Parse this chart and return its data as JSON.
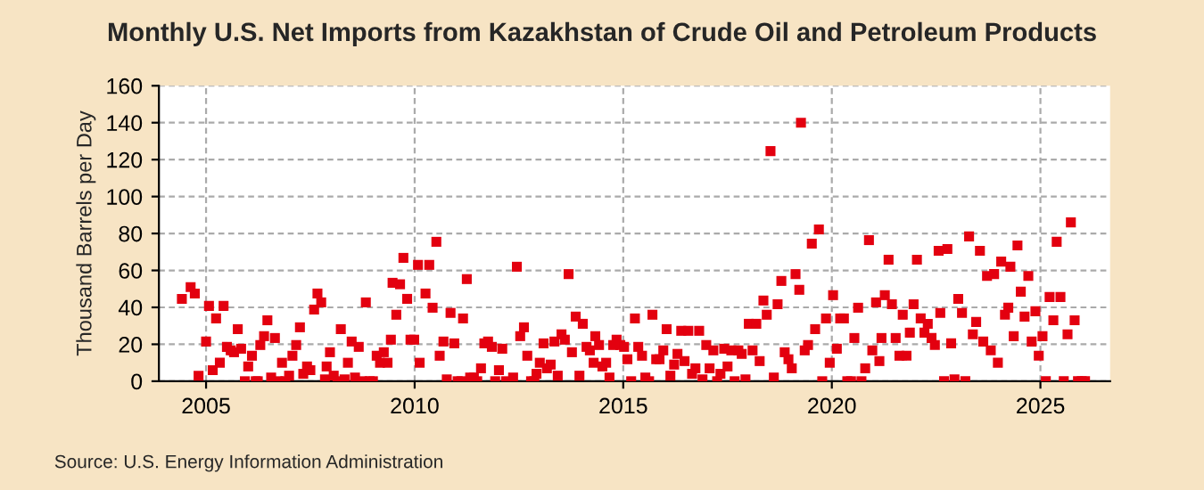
{
  "chart_data": {
    "type": "scatter",
    "title": "Monthly U.S. Net Imports from Kazakhstan of Crude Oil and Petroleum Products",
    "ylabel": "Thousand Barrels per Day",
    "annotations": [
      "Source: U.S. Energy Information Administration"
    ],
    "xlim": [
      2003.87,
      2026.67
    ],
    "xticks": [
      2005,
      2010,
      2015,
      2020,
      2025
    ],
    "ylim": [
      0,
      160
    ],
    "yticks": [
      0,
      20,
      40,
      60,
      80,
      100,
      120,
      140,
      160
    ],
    "grid": true,
    "marker": "square",
    "legend": false,
    "series": [
      {
        "color": "#e3000f",
        "x": [
          2004.42,
          2004.63,
          2004.73,
          2004.82,
          2005.0,
          2005.07,
          2005.16,
          2005.24,
          2005.33,
          2005.42,
          2005.5,
          2005.59,
          2005.67,
          2005.76,
          2005.84,
          2005.93,
          2006.01,
          2006.1,
          2006.19,
          2006.24,
          2006.3,
          2006.39,
          2006.47,
          2006.56,
          2006.65,
          2006.73,
          2006.82,
          2006.9,
          2006.99,
          2007.07,
          2007.16,
          2007.25,
          2007.33,
          2007.42,
          2007.5,
          2007.59,
          2007.67,
          2007.76,
          2007.85,
          2007.89,
          2007.97,
          2008.06,
          2008.15,
          2008.23,
          2008.32,
          2008.4,
          2008.49,
          2008.57,
          2008.66,
          2008.75,
          2008.83,
          2008.92,
          2009.0,
          2009.09,
          2009.17,
          2009.26,
          2009.35,
          2009.43,
          2009.47,
          2009.56,
          2009.65,
          2009.73,
          2009.82,
          2009.9,
          2009.99,
          2010.08,
          2010.12,
          2010.26,
          2010.35,
          2010.43,
          2010.52,
          2010.6,
          2010.69,
          2010.77,
          2010.86,
          2010.95,
          2011.03,
          2011.12,
          2011.16,
          2011.25,
          2011.33,
          2011.42,
          2011.5,
          2011.59,
          2011.67,
          2011.76,
          2011.85,
          2011.93,
          2012.02,
          2012.1,
          2012.19,
          2012.36,
          2012.45,
          2012.53,
          2012.62,
          2012.7,
          2012.79,
          2012.87,
          2012.92,
          2013.0,
          2013.09,
          2013.17,
          2013.26,
          2013.35,
          2013.43,
          2013.52,
          2013.6,
          2013.69,
          2013.77,
          2013.86,
          2013.95,
          2014.03,
          2014.12,
          2014.2,
          2014.29,
          2014.33,
          2014.42,
          2014.5,
          2014.59,
          2014.67,
          2014.76,
          2014.84,
          2014.93,
          2015.02,
          2015.1,
          2015.19,
          2015.28,
          2015.36,
          2015.45,
          2015.53,
          2015.62,
          2015.7,
          2015.79,
          2015.87,
          2015.96,
          2016.04,
          2016.13,
          2016.22,
          2016.3,
          2016.39,
          2016.47,
          2016.56,
          2016.65,
          2016.73,
          2016.82,
          2016.9,
          2016.99,
          2017.07,
          2017.16,
          2017.25,
          2017.33,
          2017.42,
          2017.5,
          2017.59,
          2017.67,
          2017.76,
          2017.84,
          2017.93,
          2018.01,
          2018.1,
          2018.19,
          2018.27,
          2018.36,
          2018.44,
          2018.53,
          2018.61,
          2018.7,
          2018.79,
          2018.87,
          2018.96,
          2019.04,
          2019.13,
          2019.22,
          2019.26,
          2019.35,
          2019.43,
          2019.52,
          2019.6,
          2019.69,
          2019.77,
          2019.86,
          2019.95,
          2020.03,
          2020.12,
          2020.2,
          2020.29,
          2020.37,
          2020.46,
          2020.54,
          2020.63,
          2020.71,
          2020.8,
          2020.89,
          2020.97,
          2021.06,
          2021.14,
          2021.19,
          2021.27,
          2021.36,
          2021.44,
          2021.53,
          2021.62,
          2021.7,
          2021.79,
          2021.87,
          2021.96,
          2022.04,
          2022.13,
          2022.22,
          2022.3,
          2022.39,
          2022.47,
          2022.56,
          2022.6,
          2022.69,
          2022.77,
          2022.86,
          2022.94,
          2023.03,
          2023.12,
          2023.2,
          2023.29,
          2023.38,
          2023.46,
          2023.55,
          2023.63,
          2023.72,
          2023.81,
          2023.89,
          2023.98,
          2024.06,
          2024.15,
          2024.23,
          2024.28,
          2024.36,
          2024.45,
          2024.53,
          2024.62,
          2024.71,
          2024.79,
          2024.88,
          2024.96,
          2025.05,
          2025.13,
          2025.22,
          2025.31,
          2025.39,
          2025.48,
          2025.56,
          2025.65,
          2025.73,
          2025.82,
          2025.9,
          2025.99,
          2026.07
        ],
        "values": [
          44.6,
          51,
          47.5,
          3,
          21.5,
          40.8,
          6,
          34,
          10,
          40.8,
          18.6,
          16.7,
          15.7,
          28.2,
          17.6,
          0,
          8,
          13.8,
          0,
          0,
          19.6,
          24.4,
          33,
          2,
          23.4,
          0,
          10,
          0,
          3,
          13.8,
          19.6,
          29.2,
          4,
          8,
          6,
          38.8,
          47.5,
          42.7,
          1,
          8,
          15.7,
          3,
          0,
          28.2,
          1,
          10,
          21.5,
          2,
          18.6,
          0,
          42.7,
          0,
          0,
          13.8,
          10,
          15.7,
          10,
          22.5,
          53.3,
          36,
          52.5,
          66.8,
          44.6,
          22.5,
          22.5,
          63,
          10,
          47.5,
          63,
          39.8,
          75.5,
          13.8,
          21.5,
          1,
          37,
          20.5,
          0,
          0,
          34,
          55.3,
          2,
          2,
          0,
          7,
          20.5,
          21.5,
          18.6,
          0,
          6,
          17.6,
          0,
          2,
          62,
          24.4,
          29.2,
          13.8,
          0,
          0,
          4,
          10,
          20.5,
          7,
          9,
          21.5,
          3,
          25.4,
          22.5,
          58,
          15.7,
          35,
          3,
          31.1,
          18.6,
          16.7,
          10,
          24.4,
          19.6,
          8,
          10,
          2,
          19.6,
          22.5,
          19.6,
          18.6,
          11.9,
          0,
          34,
          18.6,
          13.8,
          2,
          0,
          36,
          11.9,
          11.9,
          16.7,
          28.2,
          3,
          9,
          14.8,
          27.3,
          10.9,
          27.3,
          4,
          7,
          27.3,
          1,
          19.6,
          7,
          16.7,
          0,
          4,
          17.6,
          8,
          16.7,
          0,
          16.7,
          14.8,
          1,
          31.1,
          16.7,
          31.1,
          10.9,
          43.7,
          36,
          124.6,
          2,
          41.7,
          54.3,
          15.7,
          11.9,
          7,
          58,
          49.5,
          140,
          16.7,
          19.6,
          74.5,
          28.2,
          82.2,
          0,
          34,
          10,
          46.6,
          17.6,
          34,
          34,
          0,
          0,
          23.4,
          39.8,
          0,
          7,
          76.4,
          16.7,
          42.7,
          10.9,
          23.4,
          46.6,
          65.8,
          41.7,
          23.4,
          13.8,
          36,
          13.8,
          26.3,
          41.7,
          65.8,
          34,
          26.3,
          31.1,
          23.4,
          19.6,
          70.6,
          37,
          0,
          71.6,
          20.5,
          1,
          44.6,
          37,
          0,
          78.4,
          25.4,
          32.1,
          70.6,
          21.5,
          57,
          16.7,
          58,
          10,
          64.8,
          36,
          39.8,
          62,
          24.4,
          73.5,
          48.5,
          35,
          57,
          21.5,
          37.9,
          13.8,
          24.4,
          0,
          45.6,
          33,
          75.5,
          45.6,
          0,
          25.4,
          86,
          33,
          0,
          0,
          0
        ]
      }
    ]
  }
}
